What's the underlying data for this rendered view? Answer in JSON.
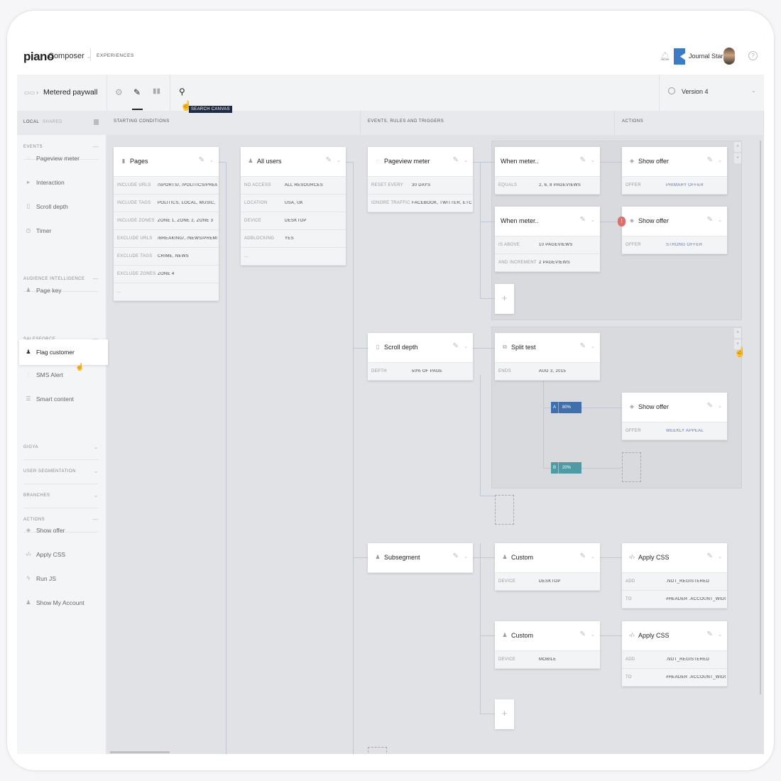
{
  "header": {
    "logo": "piano",
    "app": "Composer",
    "app_caret": "⌄",
    "nav": "EXPERIENCES",
    "account": "Journal Star",
    "help": "?"
  },
  "toolbar": {
    "breadcrumb": "Metered paywall",
    "search_tooltip": "SEARCH CANVAS",
    "version": "Version 4",
    "active_tab": "edit"
  },
  "columns": [
    "STARTING CONDITIONS",
    "EVENTS, RULES AND TRIGGERS",
    "ACTIONS"
  ],
  "sidebar": {
    "tabs": [
      "LOCAL",
      "SHARED"
    ],
    "sections": {
      "events": {
        "label": "EVENTS",
        "items": [
          {
            "label": "Pageview meter",
            "icon": "meter-icon"
          },
          {
            "label": "Interaction",
            "icon": "pointer-icon"
          },
          {
            "label": "Scroll depth",
            "icon": "scroll-icon"
          },
          {
            "label": "Timer",
            "icon": "clock-icon"
          }
        ]
      },
      "audience": {
        "label": "AUDIENCE INTELLIGENCE",
        "items": [
          {
            "label": "Page key",
            "icon": "user-icon"
          }
        ]
      },
      "salesforce": {
        "label": "SALESFORCE",
        "items": [
          {
            "label": "Flag customer",
            "icon": "user-icon"
          },
          {
            "label": "SMS Alert",
            "icon": "sliders-icon"
          },
          {
            "label": "Smart content",
            "icon": "list-icon"
          }
        ]
      },
      "gigya": {
        "label": "GIGYA"
      },
      "segmentation": {
        "label": "USER SEGMENTATION"
      },
      "branches": {
        "label": "BRANCHES"
      },
      "actions": {
        "label": "ACTIONS",
        "items": [
          {
            "label": "Show offer",
            "icon": "layers-icon"
          },
          {
            "label": "Apply CSS",
            "icon": "code-icon"
          },
          {
            "label": "Run JS",
            "icon": "bolt-icon"
          },
          {
            "label": "Show My Account",
            "icon": "account-icon"
          }
        ]
      }
    }
  },
  "cards": {
    "pages": {
      "title": "Pages",
      "icon": "chart-icon",
      "rows": [
        [
          "INCLUDE URLS",
          "/SPORTS/, /POLITICS/PREM..."
        ],
        [
          "INCLUDE TAGS",
          "POLITICS, LOCAL, MUSIC, ..."
        ],
        [
          "INCLUDE ZONES",
          "ZONE 1, ZONE 2, ZONE 3"
        ],
        [
          "EXCLUDE URLS",
          "/BREAKING/, /NEWS/PREMI..."
        ],
        [
          "EXCLUDE TAGS",
          "CRIME, NEWS"
        ],
        [
          "EXCLUDE ZONES",
          "ZONE 4"
        ],
        [
          "...",
          ""
        ]
      ]
    },
    "all_users": {
      "title": "All users",
      "icon": "user-icon",
      "rows": [
        [
          "NO ACCESS",
          "ALL RESOURCES"
        ],
        [
          "LOCATION",
          "USA, UK"
        ],
        [
          "DEVICE",
          "DESKTOP"
        ],
        [
          "ADBLOCKING",
          "YES"
        ],
        [
          "...",
          ""
        ]
      ]
    },
    "pageview_meter": {
      "title": "Pageview meter",
      "icon": "meter-icon",
      "rows": [
        [
          "RESET EVERY",
          "30 DAYS"
        ],
        [
          "IGNORE TRAFFIC",
          "FACEBOOK, TWITTER, ETC..."
        ]
      ]
    },
    "when_meter_1": {
      "title": "When meter..",
      "icon": "",
      "rows": [
        [
          "EQUALS",
          "2, 6, 8 PAGEVIEWS"
        ]
      ]
    },
    "show_offer_1": {
      "title": "Show offer",
      "icon": "layers-icon",
      "rows": [
        [
          "OFFER",
          "PRIMARY OFFER"
        ]
      ],
      "link": true
    },
    "when_meter_2": {
      "title": "When meter..",
      "icon": "",
      "rows": [
        [
          "IS ABOVE",
          "10 PAGEVIEWS"
        ],
        [
          "AND INCREMENT",
          "2 PAGEVIEWS"
        ]
      ]
    },
    "show_offer_2": {
      "title": "Show offer",
      "icon": "layers-icon",
      "rows": [
        [
          "OFFER",
          "STRONG OFFER"
        ]
      ],
      "link": true,
      "alert": "!"
    },
    "scroll_depth": {
      "title": "Scroll depth",
      "icon": "scroll-icon",
      "rows": [
        [
          "DEPTH",
          "50% OF PAGE"
        ]
      ]
    },
    "split_test": {
      "title": "Split test",
      "icon": "split-icon",
      "rows": [
        [
          "ENDS",
          "AUG 3, 2015"
        ]
      ]
    },
    "show_offer_3": {
      "title": "Show offer",
      "icon": "layers-icon",
      "rows": [
        [
          "OFFER",
          "WEEKLY APPEAL"
        ]
      ],
      "link": true
    },
    "subsegment": {
      "title": "Subsegment",
      "icon": "user-icon",
      "rows": []
    },
    "custom_1": {
      "title": "Custom",
      "icon": "user-icon",
      "rows": [
        [
          "DEVICE",
          "DESKTOP"
        ]
      ]
    },
    "apply_css_1": {
      "title": "Apply CSS",
      "icon": "code-icon",
      "rows": [
        [
          "ADD",
          ".NOT_REGISTERED"
        ],
        [
          "TO",
          "#HEADER .ACCOUNT_WIDGET"
        ]
      ]
    },
    "custom_2": {
      "title": "Custom",
      "icon": "user-icon",
      "rows": [
        [
          "DEVICE",
          "MOBILE"
        ]
      ]
    },
    "apply_css_2": {
      "title": "Apply CSS",
      "icon": "code-icon",
      "rows": [
        [
          "ADD",
          ".NOT_REGISTERED"
        ],
        [
          "TO",
          "#HEADER .ACCOUNT_WIDGET"
        ]
      ]
    }
  },
  "split_badges": [
    {
      "label": "A",
      "percent": "80%",
      "color": "#3f6fad"
    },
    {
      "label": "B",
      "percent": "20%",
      "color": "#4f9aa3"
    }
  ],
  "plus_label": "+"
}
